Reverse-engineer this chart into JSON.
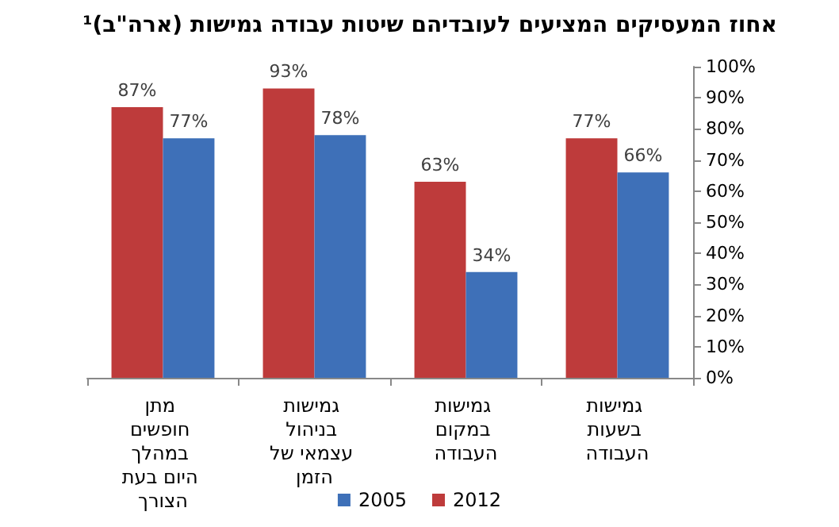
{
  "chart_data": {
    "type": "bar",
    "title": "אחוז המעסיקים המציעים לעובדיהם שיטות עבודה גמישות (ארה\"ב)¹",
    "categories": [
      "מתן חופשים במהלך היום בעת הצורך",
      "גמישות בניהול עצמאי של הזמן",
      "גמישות במקום העבודה",
      "גמישות בשעות העבודה"
    ],
    "series": [
      {
        "name": "2012",
        "color": "#be3b3b",
        "values": [
          87,
          93,
          63,
          77
        ],
        "value_labels": [
          "87%",
          "93%",
          "63%",
          "77%"
        ]
      },
      {
        "name": "2005",
        "color": "#3e70b8",
        "values": [
          77,
          78,
          34,
          66
        ],
        "value_labels": [
          "77%",
          "78%",
          "34%",
          "66%"
        ]
      }
    ],
    "ylim": [
      0,
      100
    ],
    "yticks": [
      {
        "value": 0,
        "label": "0%"
      },
      {
        "value": 10,
        "label": "10%"
      },
      {
        "value": 20,
        "label": "20%"
      },
      {
        "value": 30,
        "label": "30%"
      },
      {
        "value": 40,
        "label": "40%"
      },
      {
        "value": 50,
        "label": "50%"
      },
      {
        "value": 60,
        "label": "60%"
      },
      {
        "value": 70,
        "label": "70%"
      },
      {
        "value": 80,
        "label": "80%"
      },
      {
        "value": 90,
        "label": "90%"
      },
      {
        "value": 100,
        "label": "100%"
      }
    ],
    "grid": false,
    "legend": "bottom"
  }
}
